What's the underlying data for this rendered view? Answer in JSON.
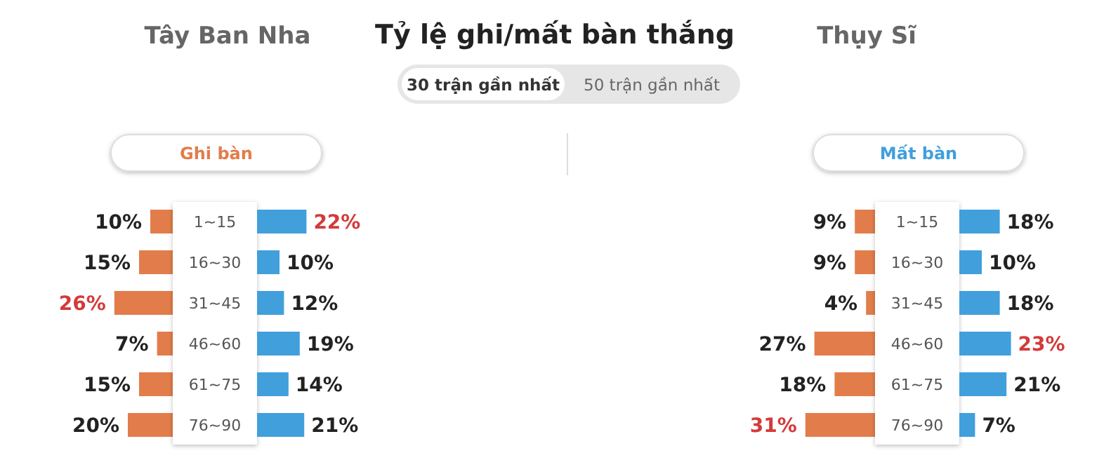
{
  "chart_data": [
    {
      "type": "other",
      "title": "Tỷ lệ ghi/mất bàn thắng",
      "annotations": [
        "Tây Ban Nha",
        "Thụy Sĩ",
        "30 trận gần nhất",
        "50 trận gần nhất"
      ]
    },
    {
      "type": "bar",
      "orientation": "horizontal",
      "title": "Ghi bàn",
      "categories": [
        "1~15",
        "16~30",
        "31~45",
        "46~60",
        "61~75",
        "76~90"
      ],
      "series": [
        {
          "color": "#e27d4b",
          "values": [
            10,
            15,
            26,
            7,
            15,
            20
          ],
          "value_labels": [
            "10%",
            "15%",
            "26%",
            "7%",
            "15%",
            "20%"
          ]
        }
      ]
    },
    {
      "type": "bar",
      "orientation": "horizontal",
      "tick_labels": false,
      "categories": [
        null,
        null,
        null,
        null,
        null,
        null
      ],
      "series": [
        {
          "color": "#419fdc",
          "values": [
            22,
            10,
            12,
            19,
            14,
            21
          ],
          "value_labels": [
            "22%",
            "10%",
            "12%",
            "19%",
            "14%",
            "21%"
          ]
        }
      ]
    },
    {
      "type": "bar",
      "orientation": "horizontal",
      "title": "Mất bàn",
      "categories": [
        "1~15",
        "16~30",
        "31~45",
        "46~60",
        "61~75",
        "76~90"
      ],
      "series": [
        {
          "color": "#e27d4b",
          "values": [
            9,
            9,
            4,
            27,
            18,
            31
          ],
          "value_labels": [
            "9%",
            "9%",
            "4%",
            "27%",
            "18%",
            "31%"
          ]
        }
      ]
    },
    {
      "type": "bar",
      "orientation": "horizontal",
      "tick_labels": false,
      "categories": [
        null,
        null,
        null,
        null,
        null,
        null
      ],
      "series": [
        {
          "color": "#419fdc",
          "values": [
            18,
            10,
            18,
            23,
            21,
            7
          ],
          "value_labels": [
            "18%",
            "10%",
            "18%",
            "23%",
            "21%",
            "7%"
          ]
        }
      ]
    }
  ]
}
